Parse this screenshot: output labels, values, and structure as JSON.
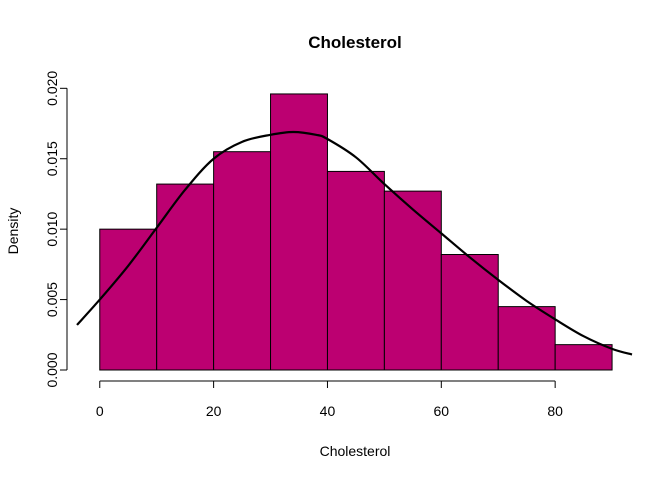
{
  "chart_data": {
    "type": "bar",
    "title": "Cholesterol",
    "xlabel": "Cholesterol",
    "ylabel": "Density",
    "bar_color": "#BC0071",
    "bins": [
      {
        "start": 0,
        "end": 10,
        "density": 0.01
      },
      {
        "start": 10,
        "end": 20,
        "density": 0.0132
      },
      {
        "start": 20,
        "end": 30,
        "density": 0.0155
      },
      {
        "start": 30,
        "end": 40,
        "density": 0.0196
      },
      {
        "start": 40,
        "end": 50,
        "density": 0.0141
      },
      {
        "start": 50,
        "end": 60,
        "density": 0.0127
      },
      {
        "start": 60,
        "end": 70,
        "density": 0.0082
      },
      {
        "start": 70,
        "end": 80,
        "density": 0.0045
      },
      {
        "start": 80,
        "end": 90,
        "density": 0.0018
      }
    ],
    "density_curve": {
      "x": [
        -4,
        0,
        5,
        10,
        15,
        20,
        25,
        30,
        34,
        38,
        40,
        45,
        50,
        55,
        60,
        65,
        70,
        75,
        80,
        85,
        90,
        93.5
      ],
      "y": [
        0.0032,
        0.005,
        0.0074,
        0.0101,
        0.0128,
        0.015,
        0.0162,
        0.0167,
        0.0169,
        0.0167,
        0.0164,
        0.0151,
        0.0132,
        0.0114,
        0.0097,
        0.008,
        0.0064,
        0.0049,
        0.0036,
        0.0024,
        0.0015,
        0.0011
      ]
    },
    "xlim": [
      -4,
      93.5
    ],
    "ylim": [
      0,
      0.0213
    ],
    "x_ticks": [
      0,
      20,
      40,
      60,
      80
    ],
    "x_tick_labels": [
      "0",
      "20",
      "40",
      "60",
      "80"
    ],
    "y_ticks": [
      0,
      0.005,
      0.01,
      0.015,
      0.02
    ],
    "y_tick_labels": [
      "0.000",
      "0.005",
      "0.010",
      "0.015",
      "0.020"
    ],
    "grid": false,
    "legend": "none"
  }
}
